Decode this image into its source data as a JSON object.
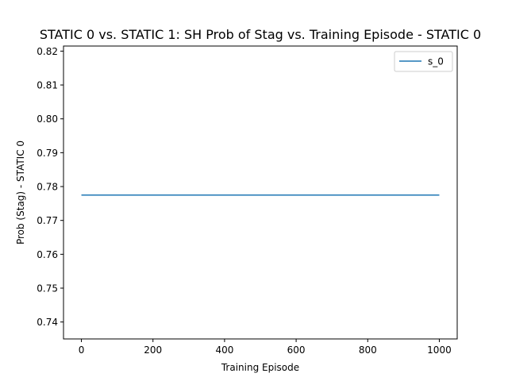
{
  "chart_data": {
    "type": "line",
    "title": "STATIC 0 vs. STATIC 1: SH Prob of Stag vs. Training Episode - STATIC 0",
    "xlabel": "Training Episode",
    "ylabel": "Prob (Stag) - STATIC 0",
    "xlim": [
      -50,
      1050
    ],
    "ylim": [
      0.735,
      0.8215
    ],
    "xticks": [
      0,
      200,
      400,
      600,
      800,
      1000
    ],
    "xtick_labels": [
      "0",
      "200",
      "400",
      "600",
      "800",
      "1000"
    ],
    "yticks": [
      0.74,
      0.75,
      0.76,
      0.77,
      0.78,
      0.79,
      0.8,
      0.81,
      0.82
    ],
    "ytick_labels": [
      "0.74",
      "0.75",
      "0.76",
      "0.77",
      "0.78",
      "0.79",
      "0.80",
      "0.81",
      "0.82"
    ],
    "grid": false,
    "legend_position": "top-right",
    "series": [
      {
        "name": "s_0",
        "color": "#1f77b4",
        "x": [
          0,
          1000
        ],
        "y": [
          0.7775,
          0.7775
        ]
      }
    ]
  }
}
